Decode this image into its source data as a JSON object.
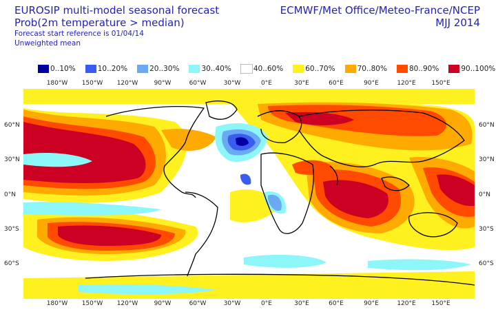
{
  "header": {
    "title_line1": "EUROSIP multi-model seasonal forecast",
    "title_line2": "Prob(2m temperature > median)",
    "forecast_ref": "Forecast start reference is 01/04/14",
    "mean_type": "Unweighted mean",
    "centres": "ECMWF/Met Office/Meteo-France/NCEP",
    "season": "MJJ 2014"
  },
  "legend": [
    {
      "label": "0..10%",
      "color": "#0000a0"
    },
    {
      "label": "10..20%",
      "color": "#3a5cf0"
    },
    {
      "label": "20..30%",
      "color": "#6aaaf4"
    },
    {
      "label": "30..40%",
      "color": "#8cf6f8"
    },
    {
      "label": "40..60%",
      "color": "#ffffff"
    },
    {
      "label": "60..70%",
      "color": "#fff020"
    },
    {
      "label": "70..80%",
      "color": "#ffaa00"
    },
    {
      "label": "80..90%",
      "color": "#ff4a00"
    },
    {
      "label": "90..100%",
      "color": "#cc0022"
    }
  ],
  "axes": {
    "lon_labels": [
      "180°W",
      "150°W",
      "120°W",
      "90°W",
      "60°W",
      "30°W",
      "0°E",
      "30°E",
      "60°E",
      "90°E",
      "120°E",
      "150°E"
    ],
    "lat_labels": [
      "60°N",
      "30°N",
      "0°N",
      "30°S",
      "60°S"
    ]
  }
}
